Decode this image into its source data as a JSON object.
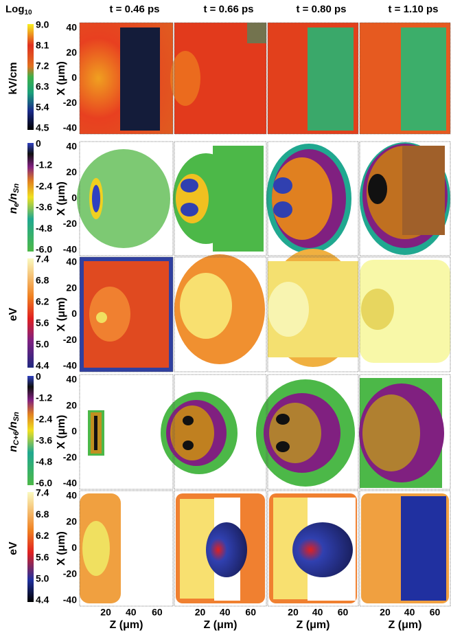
{
  "header": {
    "log": [
      "Log",
      "10"
    ]
  },
  "columns": [
    {
      "title": "t = 0.46 ps",
      "x_ticks": [
        "20",
        "40",
        "60"
      ],
      "x_axis": "Z (μm)"
    },
    {
      "title": "t = 0.66 ps",
      "x_ticks": [
        "20",
        "40",
        "60"
      ],
      "x_axis": "Z (μm)"
    },
    {
      "title": "t = 0.80 ps",
      "x_ticks": [
        "20",
        "40",
        "60"
      ],
      "x_axis": "Z (μm)"
    },
    {
      "title": "t = 1.10 ps",
      "x_ticks": [
        "20",
        "40",
        "60"
      ],
      "x_axis": "Z (μm)"
    }
  ],
  "rows": [
    {
      "label": [
        "kV/cm"
      ],
      "colorbar_ticks": [
        "9.0",
        "8.1",
        "7.2",
        "6.3",
        "5.4",
        "4.5"
      ],
      "y_axis": "X (μm)",
      "y_ticks": [
        "40",
        "20",
        "0",
        "-20",
        "-40"
      ]
    },
    {
      "label": [
        "n",
        "e",
        "/n",
        "Sn"
      ],
      "colorbar_ticks": [
        "0",
        "-1.2",
        "-2.4",
        "-3.6",
        "-4.8",
        "-6.0"
      ],
      "y_axis": "X (μm)",
      "y_ticks": [
        "40",
        "20",
        "0",
        "-20",
        "-40"
      ]
    },
    {
      "label": [
        "eV"
      ],
      "colorbar_ticks": [
        "7.4",
        "6.8",
        "6.2",
        "5.6",
        "5.0",
        "4.4"
      ],
      "y_axis": "X (μm)",
      "y_ticks": [
        "40",
        "20",
        "0",
        "-20",
        "-40"
      ]
    },
    {
      "label": [
        "n",
        "C+6",
        "/n",
        "Sn"
      ],
      "colorbar_ticks": [
        "0",
        "-1.2",
        "-2.4",
        "-3.6",
        "-4.8",
        "-6.0"
      ],
      "y_axis": "X (μm)",
      "y_ticks": [
        "40",
        "20",
        "0",
        "-20",
        "-40"
      ]
    },
    {
      "label": [
        "eV"
      ],
      "colorbar_ticks": [
        "7.4",
        "6.8",
        "6.2",
        "5.6",
        "5.0",
        "4.4"
      ],
      "y_axis": "X (μm)",
      "y_ticks": [
        "40",
        "20",
        "0",
        "-20",
        "-40"
      ]
    }
  ]
}
